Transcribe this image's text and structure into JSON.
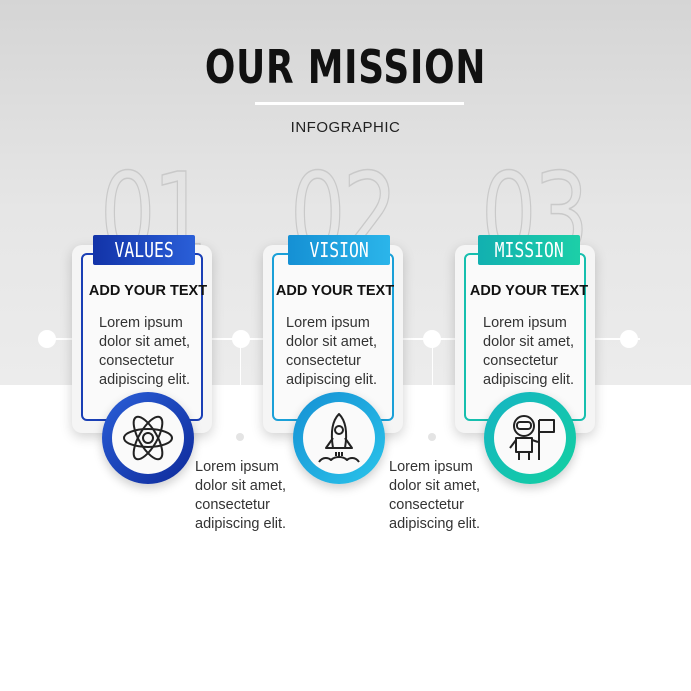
{
  "header": {
    "title": "OUR MISSION",
    "subtitle": "INFOGRAPHIC"
  },
  "steps": [
    {
      "number": "01",
      "label": "VALUES",
      "heading": "ADD YOUR TEXT",
      "body": "Lorem ipsum\ndolor sit amet,\nconsectetur\nadipiscing elit.",
      "icon": "atom-icon",
      "color": "#1a3fb5"
    },
    {
      "number": "02",
      "label": "VISION",
      "heading": "ADD YOUR TEXT",
      "body": "Lorem ipsum\ndolor sit amet,\nconsectetur\nadipiscing elit.",
      "icon": "rocket-icon",
      "color": "#1aa0d8"
    },
    {
      "number": "03",
      "label": "MISSION",
      "heading": "ADD YOUR TEXT",
      "body": "Lorem ipsum\ndolor sit amet,\nconsectetur\nadipiscing elit.",
      "icon": "astronaut-flag-icon",
      "color": "#16bfae"
    }
  ],
  "side_notes": [
    "Lorem ipsum\ndolor sit amet,\nconsectetur\nadipiscing elit.",
    "Lorem ipsum\ndolor sit amet,\nconsectetur\nadipiscing elit."
  ]
}
